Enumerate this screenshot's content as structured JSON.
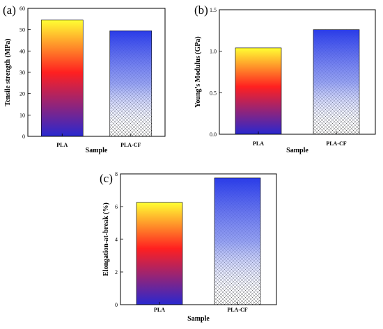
{
  "figure": {
    "colors": {
      "pla_gradient": [
        "#ffff33",
        "#ff2020",
        "#2828d0"
      ],
      "placf_gradient": [
        "#2a3ce8",
        "#ffffff"
      ],
      "crosshatch": "#555555"
    }
  },
  "chart_data": [
    {
      "panel_label": "(a)",
      "type": "bar",
      "categories": [
        "PLA",
        "PLA-CF"
      ],
      "values": [
        54.5,
        49.5
      ],
      "xlabel": "Sample",
      "ylabel": "Tensile strength (MPa)",
      "ylim": [
        0,
        60
      ],
      "yticks": [
        "0",
        "10",
        "20",
        "30",
        "40",
        "50",
        "60"
      ],
      "grid": false
    },
    {
      "panel_label": "(b)",
      "type": "bar",
      "categories": [
        "PLA",
        "PLA-CF"
      ],
      "values": [
        1.04,
        1.26
      ],
      "xlabel": "Sample",
      "ylabel": "Young’s Modulus (GPa)",
      "ylim": [
        0,
        1.5
      ],
      "yticks": [
        "0.0",
        "0.5",
        "1.0",
        "1.5"
      ],
      "grid": false
    },
    {
      "panel_label": "(c)",
      "type": "bar",
      "categories": [
        "PLA",
        "PLA-CF"
      ],
      "values": [
        6.25,
        7.75
      ],
      "xlabel": "Sample",
      "ylabel": "Elongation-at-break (%)",
      "ylim": [
        0,
        8
      ],
      "yticks": [
        "0",
        "2",
        "4",
        "6",
        "8"
      ],
      "grid": false
    }
  ]
}
